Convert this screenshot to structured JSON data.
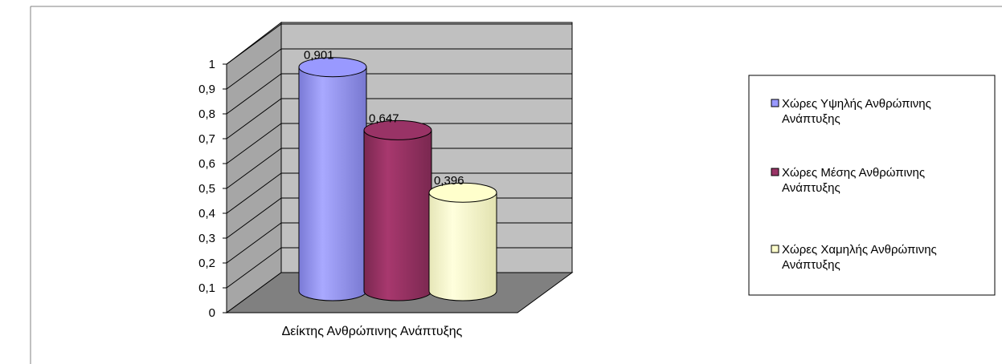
{
  "chart_data": {
    "type": "bar",
    "style": "3d-cylinder",
    "categories": [
      "Δείκτης Ανθρώπινης Ανάπτυξης"
    ],
    "series": [
      {
        "name": "Χώρες Υψηλής Ανθρώπινης Ανάπτυξης",
        "legend_lines": [
          "Χώρες Υψηλής Ανθρώπινης",
          "Ανάπτυξης"
        ],
        "values": [
          0.901
        ],
        "label": "0,901",
        "color": "#9999ff"
      },
      {
        "name": "Χώρες Μέσης Ανθρώπινης Ανάπτυξης",
        "legend_lines": [
          "Χώρες Μέσης Ανθρώπινης",
          "Ανάπτυξης"
        ],
        "values": [
          0.647
        ],
        "label": "0,647",
        "color": "#993366"
      },
      {
        "name": "Χώρες Χαμηλής Ανθρώπινης Ανάπτυξης",
        "legend_lines": [
          "Χώρες Χαμηλής Ανθρώπινης",
          "Ανάπτυξης"
        ],
        "values": [
          0.396
        ],
        "label": "0,396",
        "color": "#ffffcc"
      }
    ],
    "yticks": [
      "0",
      "0,1",
      "0,2",
      "0,3",
      "0,4",
      "0,5",
      "0,6",
      "0,7",
      "0,8",
      "0,9",
      "1"
    ],
    "ylim": [
      0,
      1.1
    ],
    "grid": true,
    "wall_color": "#c0c0c0",
    "floor_color": "#808080",
    "legend_position": "right"
  }
}
